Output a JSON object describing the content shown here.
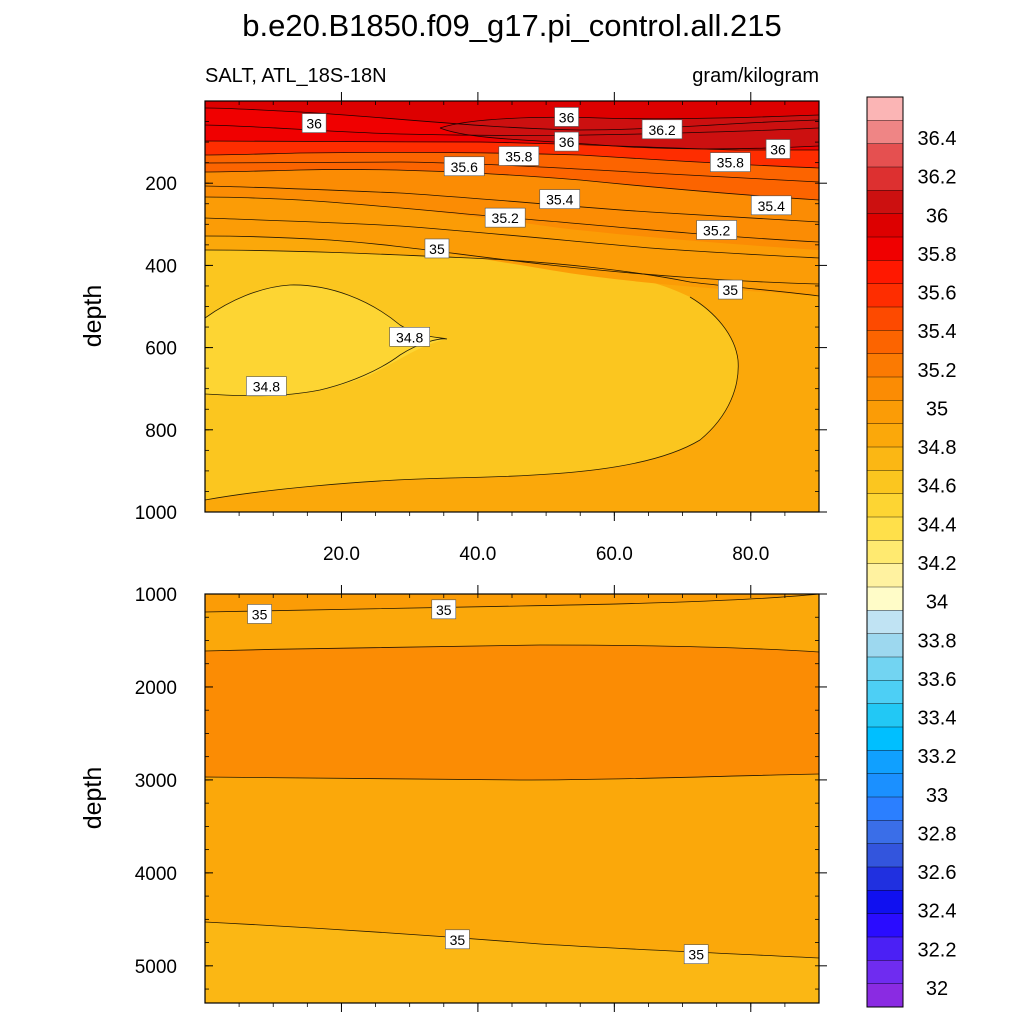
{
  "chart_data": {
    "type": "contour",
    "title": "b.e20.B1850.f09_g17.pi_control.all.215",
    "left_subtitle": "SALT, ATL_18S-18N",
    "right_subtitle": "gram/kilogram",
    "upper_panel": {
      "ylabel": "depth",
      "ylim": [
        1000,
        0
      ],
      "xlim": [
        0,
        90
      ],
      "y_ticks": [
        "200",
        "400",
        "600",
        "800",
        "1000"
      ],
      "x_ticks": [
        "20.0",
        "40.0",
        "60.0",
        "80.0"
      ],
      "contour_labels": [
        {
          "text": "36",
          "x": 16,
          "y": 55
        },
        {
          "text": "36",
          "x": 53,
          "y": 40
        },
        {
          "text": "36",
          "x": 53,
          "y": 100
        },
        {
          "text": "36.2",
          "x": 67,
          "y": 70
        },
        {
          "text": "36",
          "x": 84,
          "y": 118
        },
        {
          "text": "35.8",
          "x": 46,
          "y": 135
        },
        {
          "text": "35.8",
          "x": 77,
          "y": 150
        },
        {
          "text": "35.6",
          "x": 38,
          "y": 160
        },
        {
          "text": "35.4",
          "x": 52,
          "y": 240
        },
        {
          "text": "35.4",
          "x": 83,
          "y": 255
        },
        {
          "text": "35.2",
          "x": 44,
          "y": 285
        },
        {
          "text": "35.2",
          "x": 75,
          "y": 315
        },
        {
          "text": "35",
          "x": 34,
          "y": 360
        },
        {
          "text": "35",
          "x": 77,
          "y": 460
        },
        {
          "text": "34.8",
          "x": 30,
          "y": 575
        },
        {
          "text": "34.8",
          "x": 9,
          "y": 695
        }
      ]
    },
    "lower_panel": {
      "ylabel": "depth",
      "ylim": [
        1000,
        5400
      ],
      "xlim": [
        0,
        90
      ],
      "y_ticks": [
        "1000",
        "2000",
        "3000",
        "4000",
        "5000"
      ],
      "contour_labels": [
        {
          "text": "35",
          "x": 8,
          "y": 1220
        },
        {
          "text": "35",
          "x": 35,
          "y": 1170
        },
        {
          "text": "35",
          "x": 37,
          "y": 4720
        },
        {
          "text": "35",
          "x": 72,
          "y": 4880
        }
      ]
    },
    "colorbar": {
      "levels": [
        "32",
        "32.2",
        "32.4",
        "32.6",
        "32.8",
        "33",
        "33.2",
        "33.4",
        "33.6",
        "33.8",
        "34",
        "34.2",
        "34.4",
        "34.6",
        "34.8",
        "35",
        "35.2",
        "35.4",
        "35.6",
        "35.8",
        "36",
        "36.2",
        "36.4"
      ],
      "colors": [
        "#8a2be2",
        "#6f2cf0",
        "#4b20f5",
        "#2a0cff",
        "#1010f0",
        "#2030e0",
        "#3355dd",
        "#3a6ee8",
        "#2b7fff",
        "#1b90ff",
        "#10a0ff",
        "#00bfff",
        "#22c8f5",
        "#4dcff5",
        "#72d4f2",
        "#9dd8ef",
        "#c0e3f3",
        "#fffcc8",
        "#fff2a0",
        "#ffea70",
        "#ffe04a",
        "#fdd533",
        "#fbc61f",
        "#fbb714",
        "#fba80a",
        "#fb9c06",
        "#fb8c04",
        "#fb7a02",
        "#fc6400",
        "#fd4a00",
        "#fe2d00",
        "#ff1800",
        "#f00000",
        "#dd0000",
        "#cc1010",
        "#dd3030",
        "#e55050",
        "#ef8585",
        "#fbb5b5"
      ]
    }
  }
}
